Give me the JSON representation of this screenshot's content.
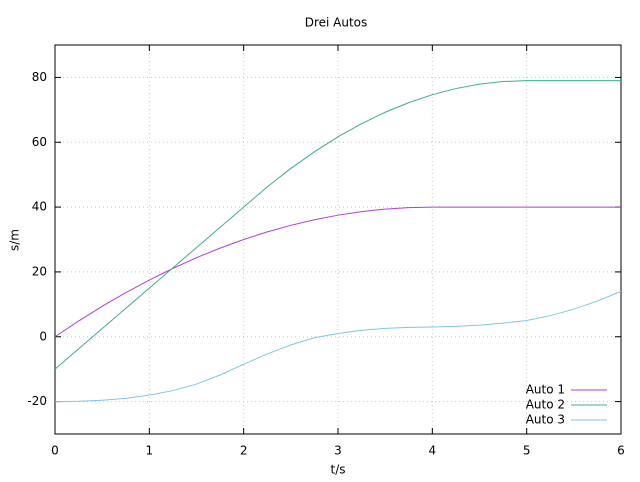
{
  "chart_data": {
    "type": "line",
    "title": "Drei Autos",
    "x_label": "t/s",
    "y_label": "s/m",
    "x": [
      0,
      0.25,
      0.5,
      0.75,
      1,
      1.25,
      1.5,
      1.75,
      2,
      2.25,
      2.5,
      2.75,
      3,
      3.25,
      3.5,
      3.75,
      4,
      4.25,
      4.5,
      4.75,
      5,
      5.25,
      5.5,
      5.75,
      6
    ],
    "series": [
      {
        "name": "Auto 1",
        "color": "#b13fd6",
        "values": [
          0,
          4.84,
          9.38,
          13.59,
          17.5,
          21.09,
          24.38,
          27.34,
          30,
          32.34,
          34.38,
          36.09,
          37.5,
          38.59,
          39.38,
          39.84,
          40,
          40,
          40,
          40,
          40,
          40,
          40,
          40,
          40
        ]
      },
      {
        "name": "Auto 2",
        "color": "#3fae8c",
        "values": [
          -10,
          -3.75,
          2.5,
          8.75,
          15,
          21.25,
          27.5,
          33.75,
          40,
          46.23,
          51.92,
          57.06,
          61.67,
          65.73,
          69.25,
          72.23,
          74.67,
          76.56,
          77.92,
          78.73,
          79,
          79,
          79,
          79,
          79
        ]
      },
      {
        "name": "Auto 3",
        "color": "#7fc6e6",
        "values": [
          -20,
          -19.9,
          -19.6,
          -19,
          -18,
          -16.6,
          -14.6,
          -11.8,
          -8.5,
          -5.3,
          -2.5,
          -0.3,
          1,
          2,
          2.6,
          2.9,
          3,
          3.2,
          3.6,
          4.2,
          5,
          6.5,
          8.5,
          11,
          14
        ]
      }
    ],
    "xlim": [
      0,
      6
    ],
    "xticks": [
      0,
      1,
      2,
      3,
      4,
      5,
      6
    ],
    "ylim": [
      -30,
      90
    ],
    "yticks": [
      -20,
      0,
      20,
      40,
      60,
      80
    ],
    "grid": true,
    "legend": "bottom-right"
  }
}
